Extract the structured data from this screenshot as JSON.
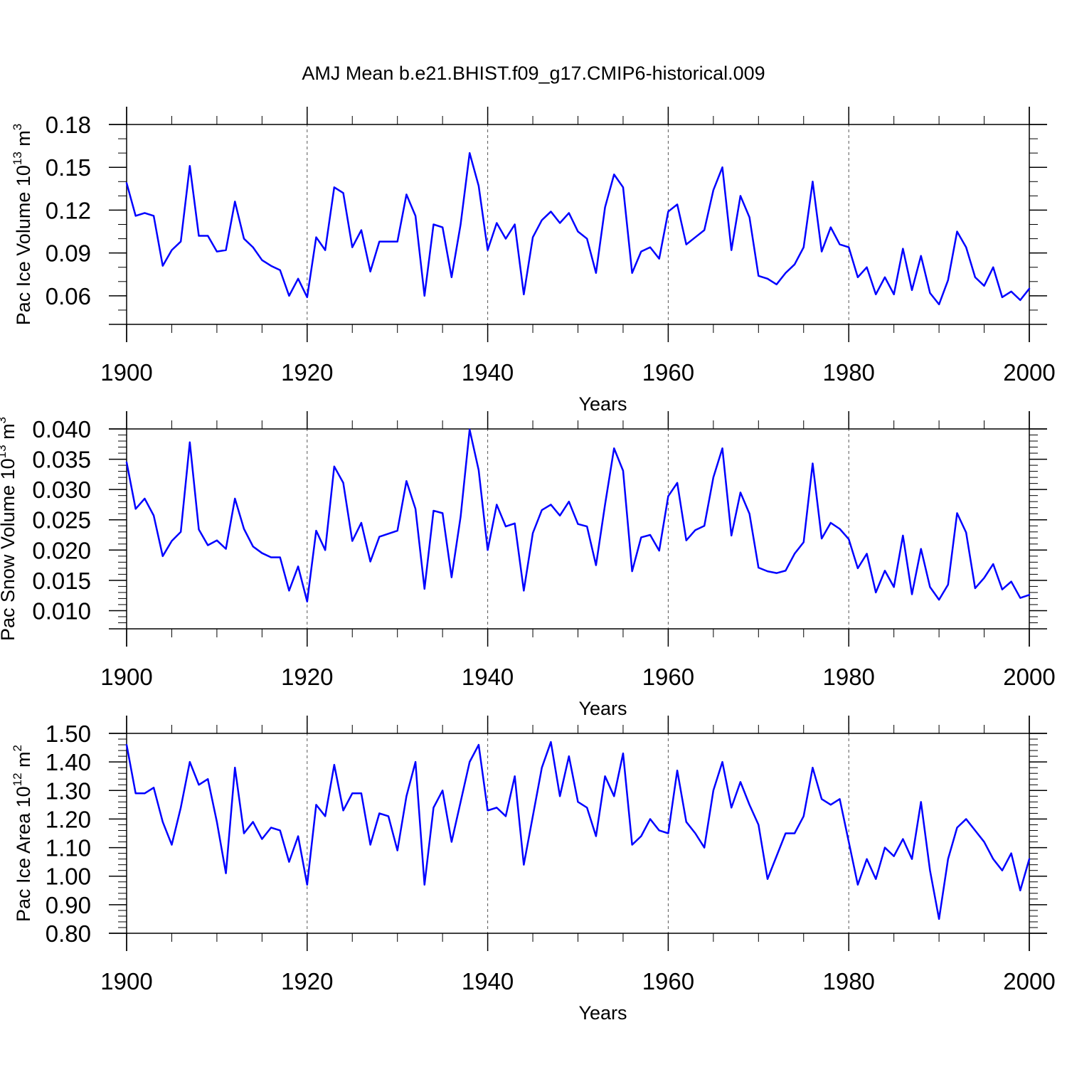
{
  "title": "AMJ Mean b.e21.BHIST.f09_g17.CMIP6-historical.009",
  "colors": {
    "series": "#0000ff",
    "axes": "#000000",
    "grid": "#555555",
    "background": "#ffffff"
  },
  "chart_data": [
    {
      "type": "line",
      "id": "ice-volume",
      "ylabel": "Pac Ice Volume 10",
      "ylabel_exp": "13",
      "ylabel_unit": " m",
      "ylabel_unit_exp": "3",
      "xlabel": "Years",
      "xlim": [
        1900,
        2000
      ],
      "ylim": [
        0.04,
        0.18
      ],
      "x_ticks": [
        1900,
        1920,
        1940,
        1960,
        1980,
        2000
      ],
      "x_tick_labels": [
        "1900",
        "1920",
        "1940",
        "1960",
        "1980",
        "2000"
      ],
      "y_ticks": [
        0.06,
        0.09,
        0.12,
        0.15,
        0.18
      ],
      "y_tick_labels": [
        "0.06",
        "0.09",
        "0.12",
        "0.15",
        "0.18"
      ],
      "y_minor_step": 0.01,
      "grid_x": [
        1920,
        1940,
        1960,
        1980
      ],
      "series": [
        {
          "name": "Pac Ice Volume",
          "x_start": 1900,
          "values": [
            0.139,
            0.116,
            0.118,
            0.116,
            0.081,
            0.092,
            0.098,
            0.151,
            0.102,
            0.102,
            0.091,
            0.092,
            0.126,
            0.1,
            0.094,
            0.085,
            0.081,
            0.078,
            0.06,
            0.072,
            0.059,
            0.101,
            0.092,
            0.136,
            0.132,
            0.094,
            0.106,
            0.077,
            0.098,
            0.098,
            0.098,
            0.131,
            0.116,
            0.06,
            0.11,
            0.108,
            0.073,
            0.11,
            0.16,
            0.137,
            0.092,
            0.111,
            0.1,
            0.11,
            0.061,
            0.101,
            0.113,
            0.119,
            0.111,
            0.118,
            0.105,
            0.1,
            0.076,
            0.122,
            0.145,
            0.136,
            0.076,
            0.091,
            0.094,
            0.086,
            0.119,
            0.124,
            0.096,
            0.101,
            0.106,
            0.134,
            0.15,
            0.092,
            0.13,
            0.115,
            0.074,
            0.072,
            0.068,
            0.076,
            0.082,
            0.094,
            0.14,
            0.091,
            0.108,
            0.096,
            0.094,
            0.073,
            0.08,
            0.061,
            0.073,
            0.061,
            0.093,
            0.064,
            0.088,
            0.062,
            0.054,
            0.071,
            0.105,
            0.094,
            0.073,
            0.067,
            0.08,
            0.059,
            0.063,
            0.057,
            0.065
          ]
        }
      ]
    },
    {
      "type": "line",
      "id": "snow-volume",
      "ylabel": "Pac Snow Volume 10",
      "ylabel_exp": "13",
      "ylabel_unit": " m",
      "ylabel_unit_exp": "3",
      "xlabel": "Years",
      "xlim": [
        1900,
        2000
      ],
      "ylim": [
        0.007,
        0.04
      ],
      "x_ticks": [
        1900,
        1920,
        1940,
        1960,
        1980,
        2000
      ],
      "x_tick_labels": [
        "1900",
        "1920",
        "1940",
        "1960",
        "1980",
        "2000"
      ],
      "y_ticks": [
        0.01,
        0.015,
        0.02,
        0.025,
        0.03,
        0.035,
        0.04
      ],
      "y_tick_labels": [
        "0.010",
        "0.015",
        "0.020",
        "0.025",
        "0.030",
        "0.035",
        "0.040"
      ],
      "y_minor_step": 0.001,
      "grid_x": [
        1920,
        1940,
        1960,
        1980
      ],
      "series": [
        {
          "name": "Pac Snow Volume",
          "x_start": 1900,
          "values": [
            0.0345,
            0.0268,
            0.0285,
            0.0257,
            0.019,
            0.0215,
            0.023,
            0.0378,
            0.0234,
            0.0208,
            0.0216,
            0.0202,
            0.0285,
            0.0235,
            0.0206,
            0.0195,
            0.0188,
            0.0188,
            0.0133,
            0.0173,
            0.0115,
            0.0232,
            0.02,
            0.0338,
            0.0311,
            0.0215,
            0.0245,
            0.0181,
            0.0222,
            0.0227,
            0.0232,
            0.0314,
            0.0268,
            0.0136,
            0.0265,
            0.0261,
            0.0155,
            0.0255,
            0.0399,
            0.0332,
            0.02,
            0.0275,
            0.0239,
            0.0244,
            0.0133,
            0.0228,
            0.0266,
            0.0275,
            0.0257,
            0.028,
            0.0243,
            0.0239,
            0.0175,
            0.0275,
            0.0368,
            0.0331,
            0.0165,
            0.0221,
            0.0225,
            0.0199,
            0.0289,
            0.0311,
            0.0216,
            0.0233,
            0.024,
            0.032,
            0.0368,
            0.0224,
            0.0295,
            0.026,
            0.0171,
            0.0165,
            0.0162,
            0.0166,
            0.0194,
            0.0213,
            0.0343,
            0.0219,
            0.0245,
            0.0235,
            0.0218,
            0.017,
            0.0194,
            0.013,
            0.0166,
            0.0139,
            0.0224,
            0.0127,
            0.0202,
            0.0139,
            0.0118,
            0.0143,
            0.0261,
            0.0229,
            0.0137,
            0.0154,
            0.0177,
            0.0135,
            0.0148,
            0.0121,
            0.0126
          ]
        }
      ]
    },
    {
      "type": "line",
      "id": "ice-area",
      "ylabel": "Pac Ice Area 10",
      "ylabel_exp": "12",
      "ylabel_unit": " m",
      "ylabel_unit_exp": "2",
      "xlabel": "Years",
      "xlim": [
        1900,
        2000
      ],
      "ylim": [
        0.8,
        1.5
      ],
      "x_ticks": [
        1900,
        1920,
        1940,
        1960,
        1980,
        2000
      ],
      "x_tick_labels": [
        "1900",
        "1920",
        "1940",
        "1960",
        "1980",
        "2000"
      ],
      "y_ticks": [
        0.8,
        0.9,
        1.0,
        1.1,
        1.2,
        1.3,
        1.4,
        1.5
      ],
      "y_tick_labels": [
        "0.80",
        "0.90",
        "1.00",
        "1.10",
        "1.20",
        "1.30",
        "1.40",
        "1.50"
      ],
      "y_minor_step": 0.02,
      "grid_x": [
        1920,
        1940,
        1960,
        1980
      ],
      "series": [
        {
          "name": "Pac Ice Area",
          "x_start": 1900,
          "values": [
            1.46,
            1.29,
            1.29,
            1.31,
            1.19,
            1.11,
            1.24,
            1.4,
            1.32,
            1.34,
            1.19,
            1.01,
            1.38,
            1.15,
            1.19,
            1.13,
            1.17,
            1.16,
            1.05,
            1.14,
            0.97,
            1.25,
            1.21,
            1.39,
            1.23,
            1.29,
            1.29,
            1.11,
            1.22,
            1.21,
            1.09,
            1.28,
            1.4,
            0.97,
            1.24,
            1.3,
            1.12,
            1.26,
            1.4,
            1.46,
            1.23,
            1.24,
            1.21,
            1.35,
            1.04,
            1.21,
            1.38,
            1.47,
            1.28,
            1.42,
            1.26,
            1.24,
            1.14,
            1.35,
            1.28,
            1.43,
            1.11,
            1.14,
            1.2,
            1.16,
            1.15,
            1.37,
            1.19,
            1.15,
            1.1,
            1.3,
            1.4,
            1.24,
            1.33,
            1.25,
            1.18,
            0.99,
            1.07,
            1.15,
            1.15,
            1.21,
            1.38,
            1.27,
            1.25,
            1.27,
            1.12,
            0.97,
            1.06,
            0.99,
            1.1,
            1.07,
            1.13,
            1.06,
            1.26,
            1.02,
            0.85,
            1.06,
            1.17,
            1.2,
            1.16,
            1.12,
            1.06,
            1.02,
            1.08,
            0.95,
            1.06
          ]
        }
      ]
    }
  ]
}
